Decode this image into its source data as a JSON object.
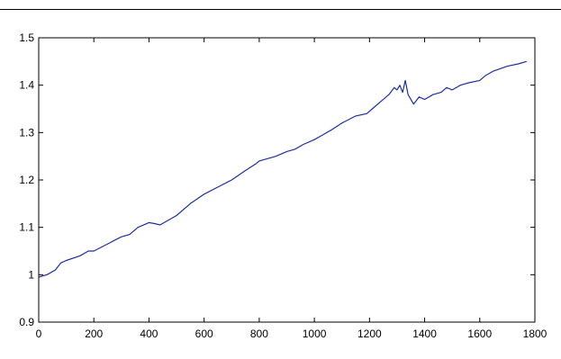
{
  "chart_data": {
    "type": "line",
    "title": "",
    "xlabel": "",
    "ylabel": "",
    "xlim": [
      0,
      1800
    ],
    "ylim": [
      0.9,
      1.5
    ],
    "xticks": [
      0,
      200,
      400,
      600,
      800,
      1000,
      1200,
      1400,
      1600,
      1800
    ],
    "xtick_labels": [
      "0",
      "200",
      "400",
      "600",
      "800",
      "1000",
      "1200",
      "1400",
      "1600",
      "1800"
    ],
    "yticks": [
      0.9,
      1.0,
      1.1,
      1.2,
      1.3,
      1.4,
      1.5
    ],
    "ytick_labels": [
      "0.9",
      "1",
      "1.1",
      "1.2",
      "1.3",
      "1.4",
      "1.5"
    ],
    "grid": false,
    "series": [
      {
        "color": "#1c2fa0",
        "x": [
          0,
          30,
          60,
          80,
          100,
          150,
          180,
          200,
          250,
          300,
          330,
          360,
          400,
          420,
          440,
          500,
          550,
          600,
          650,
          700,
          750,
          790,
          800,
          830,
          860,
          900,
          930,
          960,
          1000,
          1030,
          1060,
          1100,
          1150,
          1190,
          1210,
          1240,
          1270,
          1290,
          1300,
          1310,
          1320,
          1330,
          1340,
          1360,
          1380,
          1400,
          1430,
          1460,
          1480,
          1500,
          1530,
          1560,
          1600,
          1620,
          1650,
          1700,
          1740,
          1770
        ],
        "y": [
          0.995,
          1.0,
          1.01,
          1.025,
          1.03,
          1.04,
          1.05,
          1.05,
          1.065,
          1.08,
          1.085,
          1.1,
          1.11,
          1.108,
          1.105,
          1.125,
          1.15,
          1.17,
          1.185,
          1.2,
          1.22,
          1.235,
          1.24,
          1.245,
          1.25,
          1.26,
          1.265,
          1.275,
          1.285,
          1.295,
          1.305,
          1.32,
          1.335,
          1.34,
          1.35,
          1.365,
          1.38,
          1.395,
          1.39,
          1.4,
          1.385,
          1.41,
          1.38,
          1.36,
          1.375,
          1.37,
          1.38,
          1.385,
          1.395,
          1.39,
          1.4,
          1.405,
          1.41,
          1.42,
          1.43,
          1.44,
          1.445,
          1.45
        ]
      }
    ]
  }
}
